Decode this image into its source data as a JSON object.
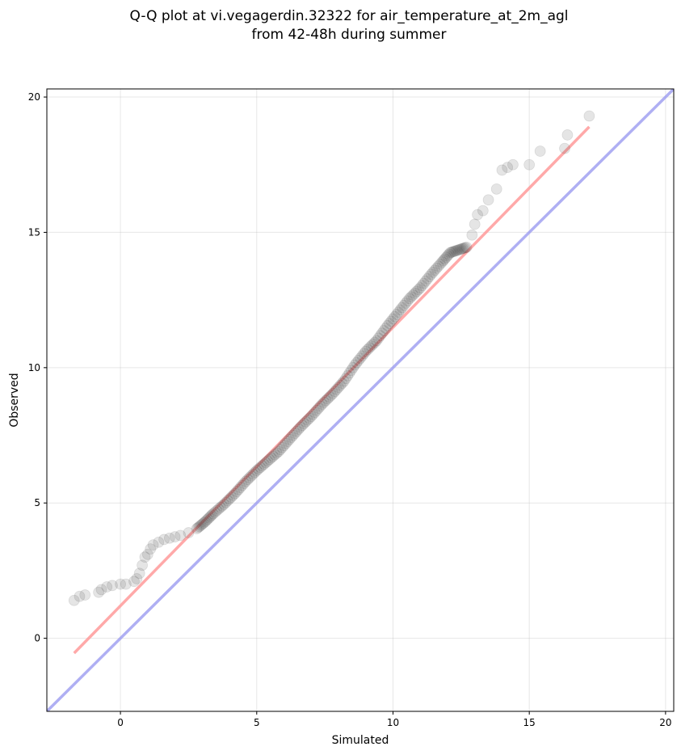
{
  "chart_data": {
    "type": "scatter",
    "title": "Q-Q plot at vi.vegagerdin.32322 for air_temperature_at_2m_agl",
    "subtitle": "from 42-48h during summer",
    "xlabel": "Simulated",
    "ylabel": "Observed",
    "xlim": [
      -2.7,
      20.3
    ],
    "ylim": [
      -2.7,
      20.3
    ],
    "x_ticks": [
      0,
      5,
      10,
      15,
      20
    ],
    "y_ticks": [
      0,
      5,
      10,
      15,
      20
    ],
    "grid": true,
    "series": [
      {
        "kind": "quantiles",
        "color": "#333333",
        "x": [
          -1.7,
          -1.5,
          -1.3,
          -0.8,
          -0.7,
          -0.5,
          -0.3,
          0.0,
          0.2,
          0.5,
          0.6,
          0.7,
          0.8,
          0.9,
          1.0,
          1.1,
          1.2,
          1.4,
          1.6,
          1.8,
          2.0,
          2.2,
          2.5,
          2.8,
          3.1,
          3.4,
          3.8,
          4.2,
          4.6,
          5.0,
          5.4,
          5.8,
          6.2,
          6.6,
          7.0,
          7.4,
          7.8,
          8.2,
          8.6,
          9.0,
          9.4,
          9.8,
          10.2,
          10.6,
          11.0,
          11.4,
          11.8,
          12.1,
          12.4,
          12.7,
          12.9,
          13.0,
          13.1,
          13.3,
          13.5,
          13.8,
          14.0,
          14.2,
          14.4,
          15.0,
          15.4,
          16.3,
          16.4,
          17.2
        ],
        "y": [
          1.4,
          1.55,
          1.6,
          1.7,
          1.8,
          1.9,
          1.95,
          2.0,
          2.0,
          2.1,
          2.2,
          2.4,
          2.7,
          3.0,
          3.1,
          3.3,
          3.45,
          3.55,
          3.65,
          3.7,
          3.75,
          3.8,
          3.9,
          4.05,
          4.3,
          4.6,
          4.95,
          5.35,
          5.8,
          6.2,
          6.55,
          6.9,
          7.35,
          7.8,
          8.2,
          8.65,
          9.05,
          9.5,
          10.1,
          10.6,
          11.0,
          11.55,
          12.05,
          12.55,
          12.95,
          13.45,
          13.9,
          14.25,
          14.35,
          14.45,
          14.9,
          15.3,
          15.65,
          15.8,
          16.2,
          16.6,
          17.3,
          17.4,
          17.5,
          17.5,
          18.0,
          18.1,
          18.6,
          19.3
        ]
      },
      {
        "kind": "fit-line",
        "color": "#ff9a9a",
        "x": [
          -1.7,
          17.2
        ],
        "y": [
          -0.55,
          18.9
        ]
      },
      {
        "kind": "one-to-one-line",
        "color": "#9b9bf0",
        "x": [
          -2.7,
          20.3
        ],
        "y": [
          -2.7,
          20.3
        ]
      }
    ]
  }
}
